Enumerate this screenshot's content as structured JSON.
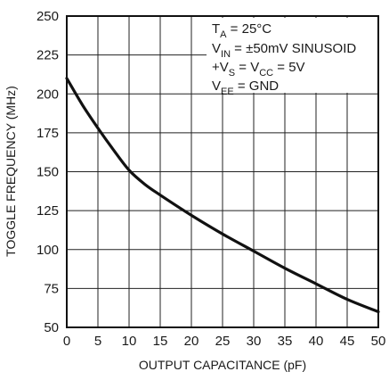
{
  "chart_data": {
    "type": "line",
    "xlabel": "OUTPUT CAPACITANCE (pF)",
    "ylabel": "TOGGLE FREQUENCY (MHz)",
    "xlim": [
      0,
      50
    ],
    "ylim": [
      50,
      250
    ],
    "x_ticks": [
      "0",
      "5",
      "10",
      "15",
      "20",
      "25",
      "30",
      "35",
      "40",
      "45",
      "50"
    ],
    "y_ticks": [
      "50",
      "75",
      "100",
      "125",
      "150",
      "175",
      "200",
      "225",
      "250"
    ],
    "grid": true,
    "series": [
      {
        "x": [
          0,
          2.5,
          5,
          7.5,
          10,
          12.5,
          15,
          20,
          25,
          30,
          35,
          40,
          45,
          50
        ],
        "values": [
          210,
          193,
          178,
          164,
          151,
          142,
          135,
          122,
          110,
          99,
          88,
          78,
          68,
          60
        ]
      }
    ],
    "annotations": {
      "line1": {
        "main": "T",
        "sub": "A",
        "rest": " = 25°C"
      },
      "line2": {
        "main": "V",
        "sub": "IN",
        "rest": " = ±50mV SINUSOID"
      },
      "line3": {
        "pre": "+V",
        "sub1": "S",
        "mid": " = V",
        "sub2": "CC",
        "rest": " = 5V"
      },
      "line4": {
        "main": "V",
        "sub": "EE",
        "rest": " = GND"
      }
    }
  }
}
